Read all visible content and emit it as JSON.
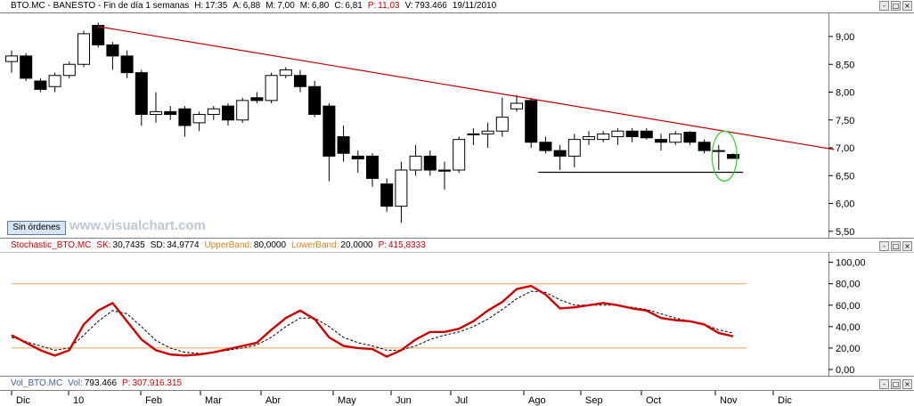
{
  "price_header": {
    "symbol": "BTO.MC - BANESTO - Fin de día 1 semanas",
    "h_label": "H:",
    "h_value": "17:35",
    "a_label": "A:",
    "a_value": "6,88",
    "m_label": "M:",
    "m_value": "7,00",
    "mn_label": "M:",
    "mn_value": "6,80",
    "c_label": "C:",
    "c_value": "6,81",
    "p_label": "P:",
    "p_value": "11,03",
    "v_label": "V:",
    "v_value": "793.466",
    "date": "19/11/2010"
  },
  "stoch_header": {
    "name": "Stochastic_BTO.MC",
    "sk_label": "SK:",
    "sk_value": "30,7435",
    "sd_label": "SD:",
    "sd_value": "34,9774",
    "upper_label": "UpperBand:",
    "upper_value": "80,0000",
    "lower_label": "LowerBand:",
    "lower_value": "20,0000",
    "p_label": "P:",
    "p_value": "415,8333"
  },
  "vol_header": {
    "name": "Vol_BTO.MC",
    "vol_label": "Vol:",
    "vol_value": "793.466",
    "p_label": "P:",
    "p_value": "307.916.315"
  },
  "window_buttons": [
    "-",
    "□",
    "×"
  ],
  "button_sin_ordenes": "Sin órdenes",
  "watermark": "www.visualchart.com",
  "colors": {
    "up_candle": "#ffffff",
    "down_candle": "#000000",
    "trendline": "#c00000",
    "support": "#000000",
    "sk_line": "#cc0000",
    "sd_line": "#000000",
    "bands": "#f0a050",
    "ellipse": "#33cc33",
    "header_red": "#cc0000",
    "header_orange": "#e08020"
  },
  "chart_data": [
    {
      "type": "candlestick",
      "title": "BTO.MC - BANESTO - Fin de día 1 semanas",
      "ylim": [
        5.4,
        9.4
      ],
      "y_ticks": [
        "9,00",
        "8,50",
        "8,00",
        "7,50",
        "7,00",
        "6,50",
        "6,00",
        "5,50"
      ],
      "y_tick_values": [
        9.0,
        8.5,
        8.0,
        7.5,
        7.0,
        6.5,
        6.0,
        5.5
      ],
      "x_labels": [
        "Dic",
        "10",
        "Feb",
        "Mar",
        "Abr",
        "May",
        "Jun",
        "Jul",
        "Ago",
        "Sep",
        "Oct",
        "Nov",
        "Dic"
      ],
      "candles": [
        {
          "o": 8.55,
          "h": 8.75,
          "l": 8.35,
          "c": 8.65
        },
        {
          "o": 8.65,
          "h": 8.7,
          "l": 8.2,
          "c": 8.25
        },
        {
          "o": 8.2,
          "h": 8.25,
          "l": 8.0,
          "c": 8.05
        },
        {
          "o": 8.1,
          "h": 8.35,
          "l": 8.0,
          "c": 8.3
        },
        {
          "o": 8.3,
          "h": 8.55,
          "l": 8.25,
          "c": 8.5
        },
        {
          "o": 8.5,
          "h": 9.1,
          "l": 8.45,
          "c": 9.05
        },
        {
          "o": 9.2,
          "h": 9.25,
          "l": 8.8,
          "c": 8.85
        },
        {
          "o": 8.85,
          "h": 8.9,
          "l": 8.4,
          "c": 8.65
        },
        {
          "o": 8.65,
          "h": 8.75,
          "l": 8.25,
          "c": 8.35
        },
        {
          "o": 8.35,
          "h": 8.4,
          "l": 7.4,
          "c": 7.6
        },
        {
          "o": 7.6,
          "h": 8.0,
          "l": 7.45,
          "c": 7.65
        },
        {
          "o": 7.65,
          "h": 7.75,
          "l": 7.5,
          "c": 7.6
        },
        {
          "o": 7.7,
          "h": 7.75,
          "l": 7.2,
          "c": 7.4
        },
        {
          "o": 7.45,
          "h": 7.65,
          "l": 7.3,
          "c": 7.6
        },
        {
          "o": 7.6,
          "h": 7.75,
          "l": 7.5,
          "c": 7.7
        },
        {
          "o": 7.75,
          "h": 7.8,
          "l": 7.4,
          "c": 7.5
        },
        {
          "o": 7.5,
          "h": 7.9,
          "l": 7.45,
          "c": 7.85
        },
        {
          "o": 7.9,
          "h": 8.0,
          "l": 7.8,
          "c": 7.85
        },
        {
          "o": 7.85,
          "h": 8.35,
          "l": 7.8,
          "c": 8.3
        },
        {
          "o": 8.3,
          "h": 8.45,
          "l": 8.25,
          "c": 8.4
        },
        {
          "o": 8.3,
          "h": 8.4,
          "l": 8.0,
          "c": 8.1
        },
        {
          "o": 8.1,
          "h": 8.2,
          "l": 7.55,
          "c": 7.6
        },
        {
          "o": 7.75,
          "h": 7.8,
          "l": 6.4,
          "c": 6.85
        },
        {
          "o": 7.2,
          "h": 7.4,
          "l": 6.75,
          "c": 6.9
        },
        {
          "o": 6.85,
          "h": 6.95,
          "l": 6.55,
          "c": 6.8
        },
        {
          "o": 6.85,
          "h": 6.9,
          "l": 6.3,
          "c": 6.45
        },
        {
          "o": 6.35,
          "h": 6.45,
          "l": 5.85,
          "c": 5.95
        },
        {
          "o": 5.95,
          "h": 6.75,
          "l": 5.65,
          "c": 6.6
        },
        {
          "o": 6.6,
          "h": 7.05,
          "l": 6.5,
          "c": 6.85
        },
        {
          "o": 6.85,
          "h": 6.95,
          "l": 6.5,
          "c": 6.6
        },
        {
          "o": 6.6,
          "h": 6.75,
          "l": 6.25,
          "c": 6.58
        },
        {
          "o": 6.6,
          "h": 7.2,
          "l": 6.55,
          "c": 7.15
        },
        {
          "o": 7.25,
          "h": 7.35,
          "l": 7.05,
          "c": 7.25
        },
        {
          "o": 7.25,
          "h": 7.45,
          "l": 7.0,
          "c": 7.3
        },
        {
          "o": 7.3,
          "h": 7.9,
          "l": 7.2,
          "c": 7.55
        },
        {
          "o": 7.7,
          "h": 7.95,
          "l": 7.65,
          "c": 7.8
        },
        {
          "o": 7.85,
          "h": 7.9,
          "l": 7.0,
          "c": 7.1
        },
        {
          "o": 7.1,
          "h": 7.2,
          "l": 6.9,
          "c": 6.95
        },
        {
          "o": 6.95,
          "h": 7.05,
          "l": 6.6,
          "c": 6.85
        },
        {
          "o": 6.85,
          "h": 7.25,
          "l": 6.65,
          "c": 7.15
        },
        {
          "o": 7.15,
          "h": 7.3,
          "l": 7.05,
          "c": 7.2
        },
        {
          "o": 7.15,
          "h": 7.3,
          "l": 7.1,
          "c": 7.25
        },
        {
          "o": 7.2,
          "h": 7.35,
          "l": 7.05,
          "c": 7.3
        },
        {
          "o": 7.3,
          "h": 7.35,
          "l": 7.1,
          "c": 7.2
        },
        {
          "o": 7.3,
          "h": 7.35,
          "l": 7.15,
          "c": 7.18
        },
        {
          "o": 7.15,
          "h": 7.25,
          "l": 6.95,
          "c": 7.1
        },
        {
          "o": 7.1,
          "h": 7.3,
          "l": 7.05,
          "c": 7.25
        },
        {
          "o": 7.28,
          "h": 7.3,
          "l": 7.05,
          "c": 7.1
        },
        {
          "o": 7.1,
          "h": 7.15,
          "l": 6.9,
          "c": 6.95
        },
        {
          "o": 6.95,
          "h": 7.05,
          "l": 6.6,
          "c": 6.95
        },
        {
          "o": 6.88,
          "h": 6.9,
          "l": 6.8,
          "c": 6.81
        }
      ],
      "trendline": {
        "from": {
          "bar": 6,
          "price": 9.18
        },
        "to": {
          "bar": 57,
          "price": 6.97
        }
      },
      "support": {
        "from": {
          "bar": 36.5,
          "price": 6.56
        },
        "to": {
          "bar": 50.7,
          "price": 6.56
        }
      },
      "highlight": {
        "bar": 49.4,
        "price": 6.85
      }
    },
    {
      "type": "line",
      "title": "Stochastic_BTO.MC",
      "ylim": [
        -5,
        108
      ],
      "y_ticks": [
        "100,00",
        "80,00",
        "60,00",
        "40,00",
        "20,00",
        "0,00"
      ],
      "y_tick_values": [
        100,
        80,
        60,
        40,
        20,
        0
      ],
      "bands": [
        80,
        20
      ],
      "series": [
        {
          "name": "SK",
          "values": [
            32,
            25,
            18,
            13,
            18,
            42,
            55,
            62,
            45,
            28,
            18,
            14,
            13,
            14,
            16,
            19,
            22,
            25,
            37,
            48,
            55,
            47,
            30,
            22,
            20,
            19,
            12,
            18,
            28,
            35,
            35,
            38,
            45,
            55,
            63,
            75,
            78,
            70,
            57,
            58,
            60,
            62,
            60,
            57,
            55,
            48,
            46,
            45,
            42,
            34,
            31
          ]
        },
        {
          "name": "SD",
          "values": [
            30,
            26,
            22,
            18,
            20,
            32,
            45,
            55,
            52,
            40,
            27,
            20,
            16,
            15,
            16,
            18,
            20,
            23,
            30,
            40,
            48,
            48,
            40,
            30,
            25,
            22,
            18,
            18,
            22,
            28,
            32,
            35,
            40,
            47,
            56,
            66,
            73,
            72,
            65,
            60,
            60,
            60,
            60,
            58,
            56,
            52,
            48,
            45,
            42,
            37,
            34
          ]
        }
      ]
    }
  ]
}
